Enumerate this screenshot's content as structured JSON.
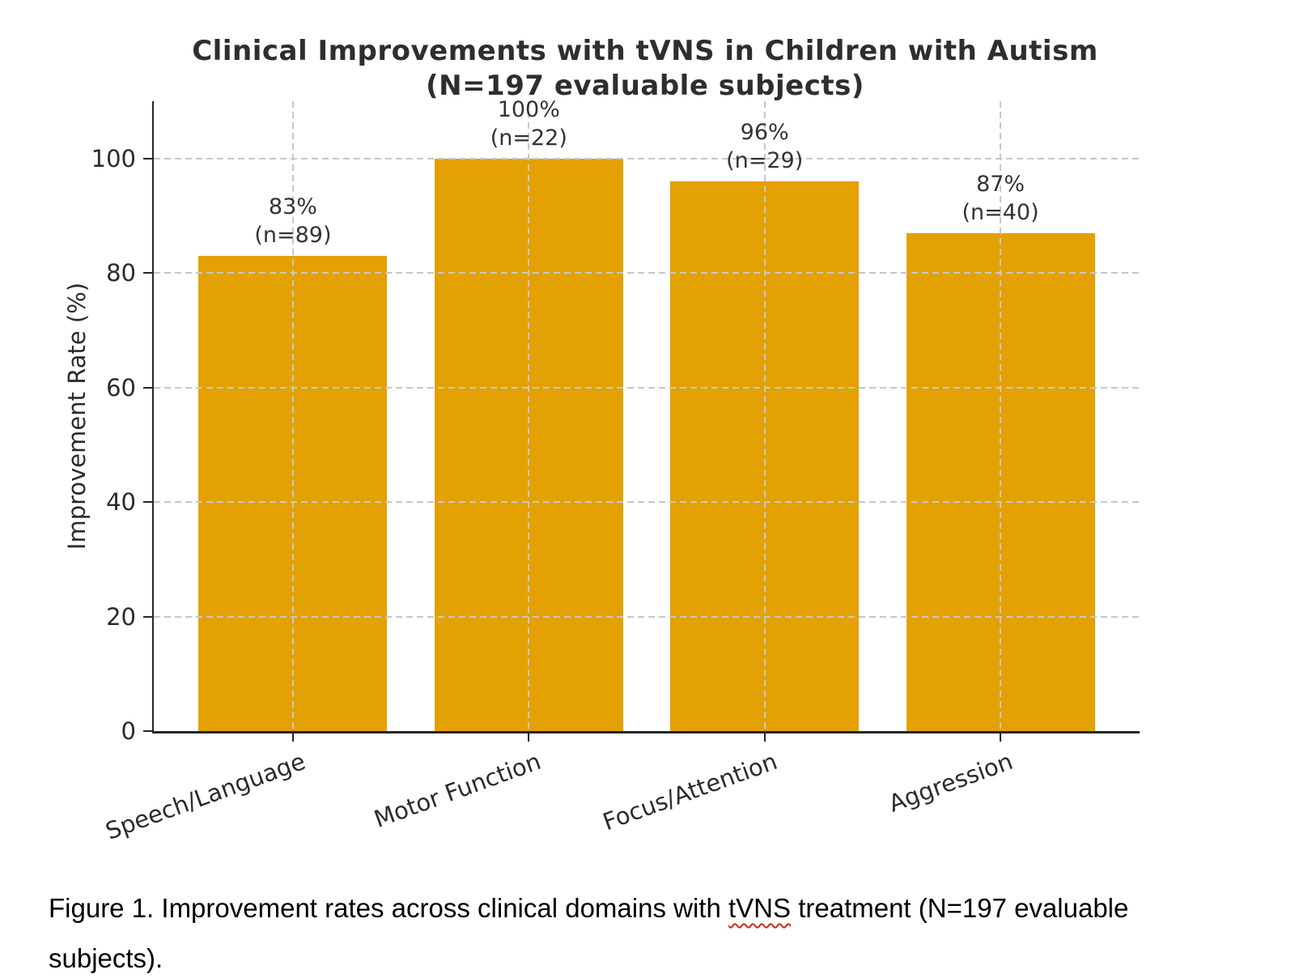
{
  "chart_data": {
    "type": "bar",
    "title": "Clinical Improvements with tVNS in Children with Autism\n(N=197 evaluable subjects)",
    "xlabel": "",
    "ylabel": "Improvement Rate (%)",
    "categories": [
      "Speech/Language",
      "Motor Function",
      "Focus/Attention",
      "Aggression"
    ],
    "values": [
      83,
      100,
      96,
      87
    ],
    "n_values": [
      89,
      22,
      29,
      40
    ],
    "bar_labels": [
      "83%\n(n=89)",
      "100%\n(n=22)",
      "96%\n(n=29)",
      "87%\n(n=40)"
    ],
    "yticks": [
      0,
      20,
      40,
      60,
      80,
      100
    ],
    "ylim": [
      0,
      110
    ],
    "grid": true,
    "grid_style": "dashed",
    "legend_position": "none",
    "bar_color": "#E4A104",
    "axis_color": "#262626",
    "grid_color": "#c7c7c7",
    "text_color": "#333333",
    "title_color": "#2e2e2e"
  },
  "caption": {
    "before": "Figure 1. Improvement rates across clinical domains with ",
    "misspelled": "tVNS",
    "after": " treatment (N=197 evaluable subjects).",
    "squiggle_color": "#cc2a1e"
  }
}
